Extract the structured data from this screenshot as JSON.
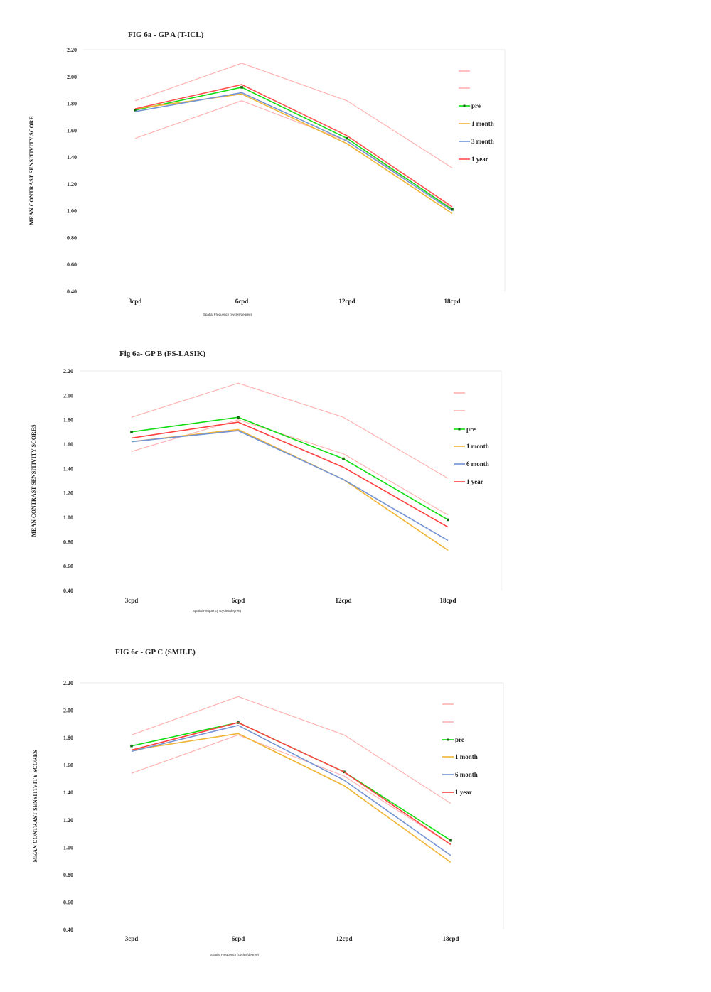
{
  "chart_data": [
    {
      "type": "line",
      "title": "FIG 6a - GP A (T-ICL)",
      "xlabel": "Spatial Frequency (cycles/degree)",
      "ylabel": "MEAN CONTRAST SENSITIVITY SCORE",
      "categories": [
        "3cpd",
        "6cpd",
        "12cpd",
        "18cpd"
      ],
      "ylim": [
        0.4,
        2.2
      ],
      "yticks": [
        "0.40",
        "0.60",
        "0.80",
        "1.00",
        "1.20",
        "1.40",
        "1.60",
        "1.80",
        "2.00",
        "2.20"
      ],
      "legend_position": "right",
      "series": [
        {
          "name": "",
          "color": "#ffb3b3",
          "values": [
            1.82,
            2.1,
            1.82,
            1.32
          ]
        },
        {
          "name": "",
          "color": "#ffb3b3",
          "values": [
            1.54,
            1.82,
            1.52,
            1.02
          ]
        },
        {
          "name": "pre",
          "color": "#11dd11",
          "marker": true,
          "values": [
            1.75,
            1.92,
            1.54,
            1.01
          ]
        },
        {
          "name": "1 month",
          "color": "#f0b435",
          "values": [
            1.76,
            1.87,
            1.5,
            0.98
          ]
        },
        {
          "name": "3 month",
          "color": "#7393d3",
          "values": [
            1.74,
            1.88,
            1.52,
            1.0
          ]
        },
        {
          "name": "1 year",
          "color": "#ff5050",
          "values": [
            1.76,
            1.94,
            1.56,
            1.03
          ]
        }
      ]
    },
    {
      "type": "line",
      "title": "Fig 6a- GP B (FS-LASIK)",
      "xlabel": "Spatial Frequency (cycles/degree)",
      "ylabel": "MEAN CONTRAST SENSITIVITY SCORES",
      "categories": [
        "3cpd",
        "6cpd",
        "12cpd",
        "18cpd"
      ],
      "ylim": [
        0.4,
        2.2
      ],
      "yticks": [
        "0.40",
        "0.60",
        "0.80",
        "1.00",
        "1.20",
        "1.40",
        "1.60",
        "1.80",
        "2.00",
        "2.20"
      ],
      "legend_position": "right",
      "series": [
        {
          "name": "",
          "color": "#ffb3b3",
          "values": [
            1.82,
            2.1,
            1.82,
            1.32
          ]
        },
        {
          "name": "",
          "color": "#ffb3b3",
          "values": [
            1.54,
            1.8,
            1.52,
            1.02
          ]
        },
        {
          "name": "pre",
          "color": "#11dd11",
          "marker": true,
          "values": [
            1.7,
            1.82,
            1.48,
            0.98
          ]
        },
        {
          "name": "1 month",
          "color": "#f0b435",
          "values": [
            1.62,
            1.72,
            1.31,
            0.73
          ]
        },
        {
          "name": "6 month",
          "color": "#7393d3",
          "values": [
            1.62,
            1.71,
            1.31,
            0.81
          ]
        },
        {
          "name": "1 year",
          "color": "#ff4040",
          "values": [
            1.65,
            1.78,
            1.41,
            0.92
          ]
        }
      ]
    },
    {
      "type": "line",
      "title": "FIG 6c - GP C (SMILE)",
      "xlabel": "Spatial Frequency (cycles/degree)",
      "ylabel": "MEAN CONTRAST SENSITIVITY SCORES",
      "categories": [
        "3cpd",
        "6cpd",
        "12cpd",
        "18cpd"
      ],
      "ylim": [
        0.4,
        2.2
      ],
      "yticks": [
        "0.40",
        "0.60",
        "0.80",
        "1.00",
        "1.20",
        "1.40",
        "1.60",
        "1.80",
        "2.00",
        "2.20"
      ],
      "legend_position": "right",
      "series": [
        {
          "name": "",
          "color": "#ffb3b3",
          "values": [
            1.82,
            2.1,
            1.82,
            1.32
          ]
        },
        {
          "name": "",
          "color": "#ffb3b3",
          "values": [
            1.54,
            1.82,
            1.52,
            1.02
          ]
        },
        {
          "name": "pre",
          "color": "#11dd11",
          "marker": true,
          "values": [
            1.74,
            1.91,
            1.55,
            1.05
          ]
        },
        {
          "name": "1 month",
          "color": "#f0b435",
          "values": [
            1.71,
            1.83,
            1.45,
            0.89
          ]
        },
        {
          "name": "6 month",
          "color": "#7393d3",
          "values": [
            1.7,
            1.89,
            1.49,
            0.94
          ]
        },
        {
          "name": "1 year",
          "color": "#ff4040",
          "values": [
            1.71,
            1.91,
            1.55,
            1.02
          ]
        }
      ]
    }
  ]
}
